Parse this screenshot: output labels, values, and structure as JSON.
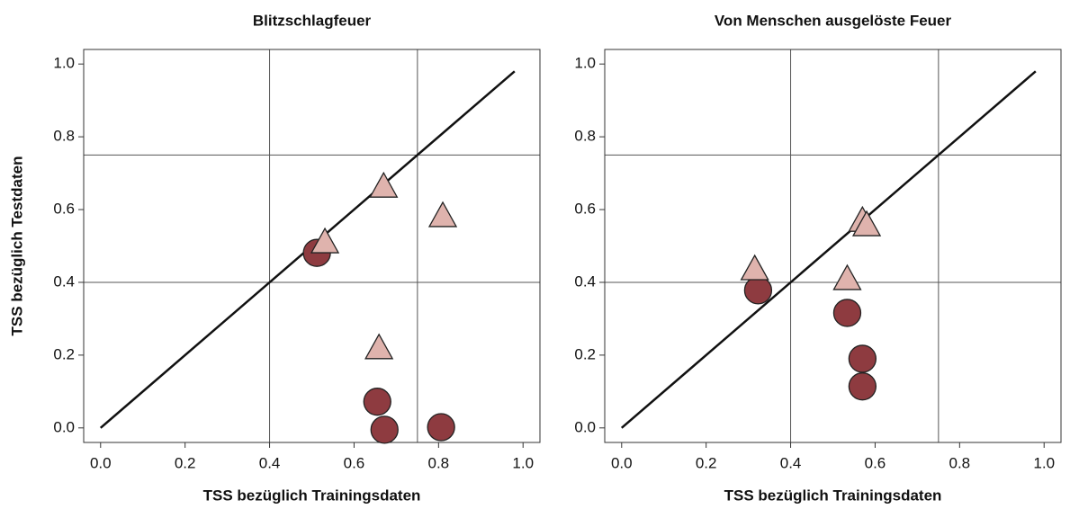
{
  "chart_data": [
    {
      "type": "scatter",
      "title": "Blitzschlagfeuer",
      "xlabel": "TSS bezüglich Trainingsdaten",
      "ylabel": "TSS bezüglich Testdaten",
      "xlim": [
        -0.04,
        1.04
      ],
      "ylim": [
        -0.04,
        1.04
      ],
      "xticks": [
        {
          "value": 0,
          "label": "0.0"
        },
        0.2,
        0.4,
        0.6,
        0.8,
        {
          "value": 1,
          "label": "1.0"
        }
      ],
      "yticks": [
        {
          "value": 0,
          "label": "0.0"
        },
        0.2,
        0.4,
        0.6,
        0.8,
        {
          "value": 1,
          "label": "1.0"
        }
      ],
      "vlines": [
        0.4,
        0.75
      ],
      "hlines": [
        0.4,
        0.75
      ],
      "diagonal": {
        "x": [
          0,
          0.98
        ],
        "y": [
          0,
          0.98
        ]
      },
      "series": [
        {
          "marker": "circle",
          "color": "#8e3b40",
          "x": [
            0.512,
            0.655,
            0.672,
            0.806
          ],
          "values": [
            0.481,
            0.072,
            -0.005,
            0.002
          ]
        },
        {
          "marker": "triangle",
          "color": "#dfb3ad",
          "x": [
            0.531,
            0.67,
            0.81,
            0.659
          ],
          "values": [
            0.506,
            0.659,
            0.578,
            0.215
          ]
        }
      ]
    },
    {
      "type": "scatter",
      "title": "Von Menschen ausgelöste Feuer",
      "xlabel": "TSS bezüglich Trainingsdaten",
      "xlim": [
        -0.04,
        1.04
      ],
      "ylim": [
        -0.04,
        1.04
      ],
      "xticks": [
        {
          "value": 0,
          "label": "0.0"
        },
        0.2,
        0.4,
        0.6,
        0.8,
        {
          "value": 1,
          "label": "1.0"
        }
      ],
      "yticks": [
        {
          "value": 0,
          "label": "0.0"
        },
        0.2,
        0.4,
        0.6,
        0.8,
        {
          "value": 1,
          "label": "1.0"
        }
      ],
      "vlines": [
        0.4,
        0.75
      ],
      "hlines": [
        0.4,
        0.75
      ],
      "diagonal": {
        "x": [
          0,
          0.98
        ],
        "y": [
          0,
          0.98
        ]
      },
      "series": [
        {
          "marker": "circle",
          "color": "#8e3b40",
          "x": [
            0.323,
            0.534,
            0.57,
            0.57
          ],
          "values": [
            0.378,
            0.316,
            0.19,
            0.114
          ]
        },
        {
          "marker": "triangle",
          "color": "#dfb3ad",
          "x": [
            0.315,
            0.534,
            0.57,
            0.58
          ],
          "values": [
            0.432,
            0.405,
            0.565,
            0.553
          ]
        }
      ]
    }
  ]
}
